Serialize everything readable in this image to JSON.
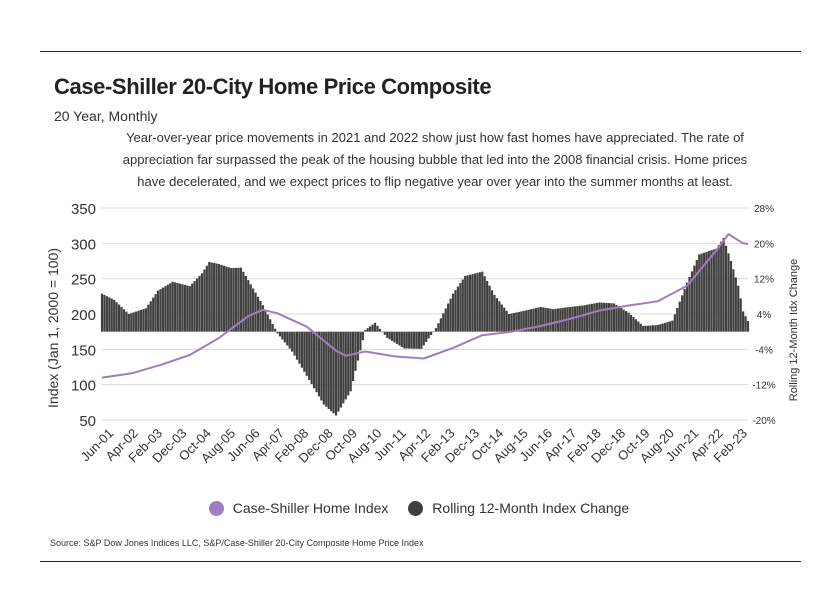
{
  "header": {
    "title": "Case-Shiller 20-City Home Price Composite",
    "subtitle": "20 Year, Monthly",
    "note": "Year-over-year price movements in 2021 and 2022 show just how fast homes have appreciated. The rate of appreciation far surpassed the peak of the housing bubble that led into the 2008 financial crisis. Home prices have decelerated, and we expect prices to flip negative year over year into the summer months at least."
  },
  "legend": {
    "index_label": "Case-Shiller Home Index",
    "change_label": "Rolling 12-Month Index Change"
  },
  "source": "Source:  S&P Dow Jones Indices LLC, S&P/Case-Shiller 20-City Composite Home Price Index",
  "colors": {
    "index_line": "#a07cc0",
    "bars": "#3f3f3f",
    "grid": "#d9d9d9"
  },
  "chart_data": {
    "type": "bar",
    "start": "Jan-01",
    "end": "Feb-23",
    "ylabel": "Index (Jan 1, 2000 = 100)",
    "y2label": "Rolling 12-Month Idx Change",
    "ylim": [
      50,
      350
    ],
    "yticks": [
      50,
      100,
      150,
      200,
      250,
      300,
      350
    ],
    "y2lim": [
      -20,
      28
    ],
    "y2ticks": [
      "-20%",
      "-12%",
      "-4%",
      "4%",
      "12%",
      "20%",
      "28%"
    ],
    "xticks": [
      "Jun-01",
      "Apr-02",
      "Feb-03",
      "Dec-03",
      "Oct-04",
      "Aug-05",
      "Jun-06",
      "Apr-07",
      "Feb-08",
      "Dec-08",
      "Oct-09",
      "Aug-10",
      "Jun-11",
      "Apr-12",
      "Feb-13",
      "Dec-13",
      "Oct-14",
      "Aug-15",
      "Jun-16",
      "Apr-17",
      "Feb-18",
      "Dec-18",
      "Oct-19",
      "Aug-20",
      "Jun-21",
      "Apr-22",
      "Feb-23"
    ],
    "grid": true,
    "legend_position": "bottom",
    "series": [
      {
        "name": "Case-Shiller Home Index",
        "type": "line",
        "axis": "left",
        "x": [
          "Jan-01",
          "Jan-02",
          "Jan-03",
          "Jan-04",
          "Jan-05",
          "Jan-06",
          "Jul-06",
          "Jan-07",
          "Jan-08",
          "Jan-09",
          "May-09",
          "Jan-10",
          "Jan-11",
          "Jan-12",
          "Jan-13",
          "Jan-14",
          "Jan-15",
          "Jan-16",
          "Jan-17",
          "Jan-18",
          "Jan-19",
          "Jan-20",
          "Jan-21",
          "Jan-22",
          "Jun-22",
          "Dec-22",
          "Feb-23"
        ],
        "values": [
          110,
          116,
          128,
          142,
          166,
          197,
          206,
          201,
          182,
          148,
          141,
          147,
          140,
          137,
          152,
          170,
          175,
          183,
          193,
          205,
          212,
          218,
          240,
          290,
          313,
          300,
          299
        ]
      },
      {
        "name": "Rolling 12-Month Index Change",
        "type": "bar",
        "axis": "right",
        "x": [
          "Jan-01",
          "Jun-01",
          "Dec-01",
          "Jul-02",
          "Dec-02",
          "Jun-03",
          "Jan-04",
          "Jun-04",
          "Sep-04",
          "Jan-05",
          "Jun-05",
          "Oct-05",
          "Jul-06",
          "Jan-07",
          "Jul-07",
          "Jan-08",
          "Aug-08",
          "Jan-09",
          "Jul-09",
          "Jan-10",
          "May-10",
          "Oct-10",
          "May-11",
          "Dec-11",
          "Jun-12",
          "Jan-13",
          "Jun-13",
          "Jan-14",
          "Jun-14",
          "Dec-14",
          "Jun-15",
          "Jan-16",
          "Jun-16",
          "Jan-17",
          "Jun-17",
          "Jan-18",
          "Jul-18",
          "Jan-19",
          "Jul-19",
          "Jan-20",
          "Jul-20",
          "Jan-21",
          "Jun-21",
          "Jan-22",
          "Apr-22",
          "Jul-22",
          "Oct-22",
          "Dec-22",
          "Feb-23"
        ],
        "values": [
          8.6,
          7.2,
          4.0,
          5.3,
          9.3,
          11.3,
          10.3,
          13.2,
          15.8,
          15.3,
          14.4,
          14.5,
          6.0,
          -0.4,
          -4.5,
          -10.0,
          -16.5,
          -19.0,
          -13.5,
          0.4,
          2.0,
          -1.4,
          -3.8,
          -3.9,
          0.8,
          8.6,
          12.6,
          13.6,
          8.3,
          4.0,
          4.7,
          5.6,
          5.1,
          5.6,
          5.9,
          6.6,
          6.4,
          4.3,
          1.3,
          1.5,
          2.5,
          11.1,
          17.5,
          18.8,
          21.2,
          16.0,
          10.4,
          4.6,
          2.4
        ]
      }
    ]
  }
}
